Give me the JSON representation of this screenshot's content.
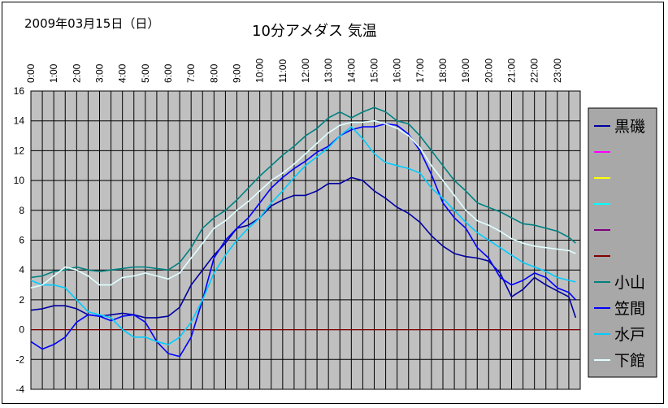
{
  "header": {
    "date": "2009年03月15日（日）",
    "title": "10分アメダス 気温"
  },
  "colors": {
    "plot_bg": "#c0c0c0",
    "legend_bg": "#a8a8a8",
    "zero_line": "#800000",
    "series": [
      "#0000a0",
      "#ff00ff",
      "#ffff00",
      "#00ffff",
      "#800080",
      "#800000",
      "#008080",
      "#0000ff",
      "#00ccff",
      "#e0ffff"
    ]
  },
  "chart_data": {
    "type": "line",
    "title": "10分アメダス 気温",
    "xlabel": "",
    "ylabel": "",
    "xlim": [
      0,
      24
    ],
    "ylim": [
      -4,
      16
    ],
    "yticks": [
      16,
      14,
      12,
      10,
      8,
      6,
      4,
      2,
      0,
      -2,
      -4
    ],
    "xticks": [
      "0:00",
      "1:00",
      "2:00",
      "3:00",
      "4:00",
      "5:00",
      "6:00",
      "7:00",
      "8:00",
      "9:00",
      "10:00",
      "11:00",
      "12:00",
      "13:00",
      "14:00",
      "15:00",
      "16:00",
      "17:00",
      "18:00",
      "19:00",
      "20:00",
      "21:00",
      "22:00",
      "23:00"
    ],
    "grid": true,
    "legend_position": "right",
    "series": [
      {
        "name": "黒磯",
        "color": "#0000a0",
        "x": [
          0,
          0.5,
          1,
          1.5,
          2,
          2.5,
          3,
          3.5,
          4,
          4.5,
          5,
          5.5,
          6,
          6.5,
          7,
          7.5,
          8,
          8.5,
          9,
          9.5,
          10,
          10.5,
          11,
          11.5,
          12,
          12.5,
          13,
          13.5,
          14,
          14.5,
          15,
          15.5,
          16,
          16.5,
          17,
          17.5,
          18,
          18.5,
          19,
          19.5,
          20,
          20.5,
          21,
          21.5,
          22,
          22.5,
          23,
          23.5,
          23.8
        ],
        "y": [
          1.3,
          1.4,
          1.6,
          1.6,
          1.4,
          1.0,
          0.9,
          1.0,
          1.1,
          1.0,
          0.8,
          0.8,
          0.9,
          1.5,
          3.0,
          4.0,
          5.0,
          5.8,
          6.8,
          7.0,
          7.5,
          8.3,
          8.7,
          9.0,
          9.0,
          9.3,
          9.8,
          9.8,
          10.2,
          10.0,
          9.3,
          8.8,
          8.2,
          7.8,
          7.2,
          6.3,
          5.6,
          5.1,
          4.9,
          4.8,
          4.6,
          3.8,
          2.2,
          2.7,
          3.5,
          3.0,
          2.6,
          2.2,
          0.8
        ]
      },
      {
        "name": "",
        "color": "#ff00ff",
        "x": [],
        "y": []
      },
      {
        "name": "",
        "color": "#ffff00",
        "x": [],
        "y": []
      },
      {
        "name": "",
        "color": "#00ffff",
        "x": [],
        "y": []
      },
      {
        "name": "",
        "color": "#800080",
        "x": [],
        "y": []
      },
      {
        "name": "",
        "color": "#800000",
        "x": [
          0,
          24
        ],
        "y": [
          0,
          0
        ]
      },
      {
        "name": "小山",
        "color": "#008080",
        "x": [
          0,
          0.5,
          1,
          1.5,
          2,
          2.5,
          3,
          3.5,
          4,
          4.5,
          5,
          5.5,
          6,
          6.5,
          7,
          7.5,
          8,
          8.5,
          9,
          9.5,
          10,
          10.5,
          11,
          11.5,
          12,
          12.5,
          13,
          13.5,
          14,
          14.5,
          15,
          15.5,
          16,
          16.5,
          17,
          17.5,
          18,
          18.5,
          19,
          19.5,
          20,
          20.5,
          21,
          21.5,
          22,
          22.5,
          23,
          23.5,
          23.8
        ],
        "y": [
          3.5,
          3.6,
          3.9,
          4.0,
          4.2,
          4.0,
          3.9,
          4.0,
          4.1,
          4.2,
          4.2,
          4.1,
          4.0,
          4.5,
          5.5,
          6.8,
          7.5,
          8.0,
          8.7,
          9.5,
          10.3,
          11.0,
          11.7,
          12.3,
          13.0,
          13.5,
          14.2,
          14.6,
          14.2,
          14.6,
          14.9,
          14.6,
          14.0,
          13.8,
          13.0,
          12.0,
          11.0,
          10.0,
          9.3,
          8.5,
          8.2,
          7.9,
          7.5,
          7.1,
          7.0,
          6.8,
          6.6,
          6.2,
          5.8
        ]
      },
      {
        "name": "笠間",
        "color": "#0000ff",
        "x": [
          0,
          0.5,
          1,
          1.5,
          2,
          2.5,
          3,
          3.5,
          4,
          4.5,
          5,
          5.5,
          6,
          6.5,
          7,
          7.5,
          8,
          8.5,
          9,
          9.5,
          10,
          10.5,
          11,
          11.5,
          12,
          12.5,
          13,
          13.5,
          14,
          14.5,
          15,
          15.5,
          16,
          16.5,
          17,
          17.5,
          18,
          18.5,
          19,
          19.5,
          20,
          20.5,
          21,
          21.5,
          22,
          22.5,
          23,
          23.5,
          23.8
        ],
        "y": [
          -0.8,
          -1.3,
          -1.0,
          -0.5,
          0.5,
          1.0,
          0.9,
          0.6,
          0.9,
          1.0,
          0.5,
          -0.8,
          -1.6,
          -1.8,
          -0.5,
          2.0,
          4.8,
          6.0,
          6.8,
          7.5,
          8.5,
          9.5,
          10.2,
          10.8,
          11.3,
          11.9,
          12.3,
          13.0,
          13.4,
          13.6,
          13.6,
          13.8,
          13.7,
          13.1,
          12.0,
          10.4,
          8.5,
          7.5,
          6.8,
          5.5,
          4.8,
          3.5,
          3.0,
          3.3,
          3.8,
          3.5,
          2.8,
          2.5,
          2.0
        ]
      },
      {
        "name": "水戸",
        "color": "#00ccff",
        "x": [
          0,
          0.5,
          1,
          1.5,
          2,
          2.5,
          3,
          3.5,
          4,
          4.5,
          5,
          5.5,
          6,
          6.5,
          7,
          7.5,
          8,
          8.5,
          9,
          9.5,
          10,
          10.5,
          11,
          11.5,
          12,
          12.5,
          13,
          13.5,
          14,
          14.5,
          15,
          15.5,
          16,
          16.5,
          17,
          17.5,
          18,
          18.5,
          19,
          19.5,
          20,
          20.5,
          21,
          21.5,
          22,
          22.5,
          23,
          23.5,
          23.8
        ],
        "y": [
          3.3,
          3.0,
          3.0,
          2.8,
          2.0,
          1.2,
          1.0,
          0.8,
          0.0,
          -0.5,
          -0.5,
          -0.8,
          -1.0,
          -0.5,
          0.5,
          2.0,
          3.8,
          5.0,
          6.0,
          6.8,
          7.5,
          8.5,
          9.3,
          10.2,
          11.0,
          11.6,
          12.2,
          13.0,
          13.6,
          12.8,
          11.8,
          11.2,
          11.0,
          10.8,
          10.5,
          9.5,
          8.8,
          8.0,
          7.2,
          6.5,
          6.0,
          5.5,
          5.0,
          4.5,
          4.2,
          3.9,
          3.5,
          3.3,
          3.2
        ]
      },
      {
        "name": "下館",
        "color": "#e0ffff",
        "x": [
          0,
          0.5,
          1,
          1.5,
          2,
          2.5,
          3,
          3.5,
          4,
          4.5,
          5,
          5.5,
          6,
          6.5,
          7,
          7.5,
          8,
          8.5,
          9,
          9.5,
          10,
          10.5,
          11,
          11.5,
          12,
          12.5,
          13,
          13.5,
          14,
          14.5,
          15,
          15.5,
          16,
          16.5,
          17,
          17.5,
          18,
          18.5,
          19,
          19.5,
          20,
          20.5,
          21,
          21.5,
          22,
          22.5,
          23,
          23.5,
          23.8
        ],
        "y": [
          2.8,
          3.0,
          3.6,
          4.2,
          4.0,
          3.6,
          3.0,
          3.0,
          3.5,
          3.6,
          3.8,
          3.6,
          3.4,
          3.8,
          4.8,
          5.8,
          6.8,
          7.3,
          8.0,
          8.6,
          9.3,
          10.0,
          10.5,
          11.1,
          11.8,
          12.5,
          13.2,
          13.7,
          13.9,
          13.9,
          14.0,
          13.8,
          13.5,
          13.0,
          12.2,
          11.0,
          10.0,
          9.0,
          8.0,
          7.3,
          7.0,
          6.6,
          6.1,
          5.8,
          5.6,
          5.5,
          5.4,
          5.3,
          5.1
        ]
      }
    ]
  }
}
